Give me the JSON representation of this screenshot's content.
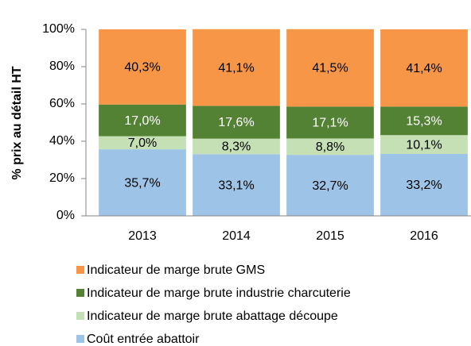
{
  "chart_data": {
    "type": "stacked_bar",
    "stacked": true,
    "y_label": "% prix au détail HT",
    "categories": [
      "2013",
      "2014",
      "2015",
      "2016"
    ],
    "series": [
      {
        "name": "Coût entrée abattoir",
        "color": "#9dc3e6",
        "label_color": "#000000",
        "values": [
          35.7,
          33.1,
          32.7,
          33.2
        ],
        "value_labels": [
          "35,7%",
          "33,1%",
          "32,7%",
          "33,2%"
        ]
      },
      {
        "name": "Indicateur de marge brute abattage découpe",
        "color": "#c5e0b4",
        "label_color": "#000000",
        "values": [
          7.0,
          8.3,
          8.8,
          10.1
        ],
        "value_labels": [
          "7,0%",
          "8,3%",
          "8,8%",
          "10,1%"
        ]
      },
      {
        "name": "Indicateur de marge brute industrie charcuterie",
        "color": "#548235",
        "label_color": "#ffffff",
        "values": [
          17.0,
          17.6,
          17.1,
          15.3
        ],
        "value_labels": [
          "17,0%",
          "17,6%",
          "17,1%",
          "15,3%"
        ]
      },
      {
        "name": "Indicateur de marge brute GMS",
        "color": "#f79646",
        "label_color": "#000000",
        "values": [
          40.3,
          41.1,
          41.5,
          41.4
        ],
        "value_labels": [
          "40,3%",
          "41,1%",
          "41,5%",
          "41,4%"
        ]
      }
    ],
    "ylim": [
      0,
      100
    ],
    "yticks": [
      {
        "value": 0,
        "label": "0%"
      },
      {
        "value": 20,
        "label": "20%"
      },
      {
        "value": 40,
        "label": "40%"
      },
      {
        "value": 60,
        "label": "60%"
      },
      {
        "value": 80,
        "label": "80%"
      },
      {
        "value": 100,
        "label": "100%"
      }
    ],
    "grid": false,
    "legend": "bottom"
  }
}
